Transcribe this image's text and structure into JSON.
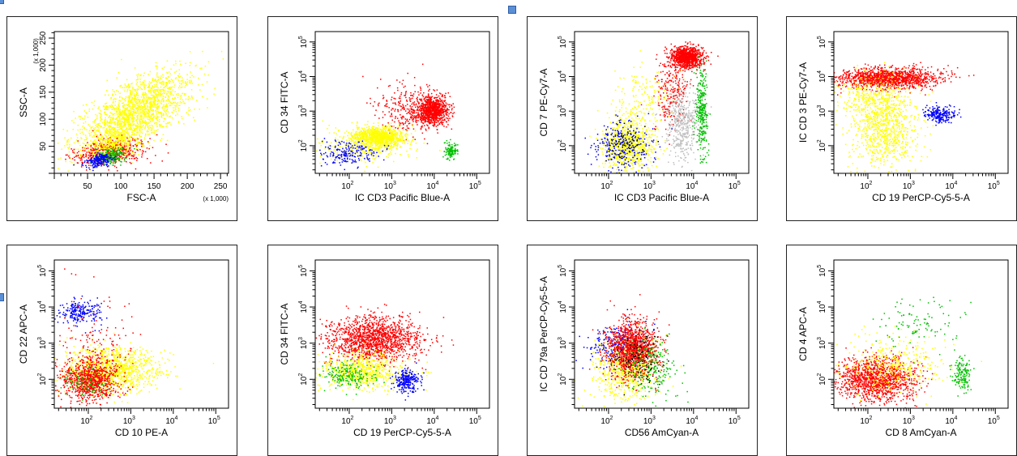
{
  "chart_data": [
    {
      "type": "scatter",
      "xscale": "linear",
      "yscale": "linear",
      "xlabel": "FSC-A",
      "ylabel": "SSC-A",
      "xunit": "(x 1,000)",
      "yunit": "(x 1,000)",
      "xlim": [
        0,
        262
      ],
      "ylim": [
        0,
        262
      ],
      "xticks": [
        50,
        100,
        150,
        200,
        250
      ],
      "yticks": [
        50,
        100,
        150,
        200,
        250
      ],
      "populations": [
        {
          "color": "#ffff00",
          "center": [
            120,
            110
          ],
          "spread": [
            42,
            30
          ],
          "n": 1800,
          "tilt": 0.85
        },
        {
          "color": "#ff0000",
          "center": [
            85,
            40
          ],
          "spread": [
            28,
            12
          ],
          "n": 500,
          "tilt": 0.3
        },
        {
          "color": "#ffff00",
          "center": [
            90,
            55
          ],
          "spread": [
            20,
            12
          ],
          "n": 300,
          "tilt": 0.4
        },
        {
          "color": "#00c000",
          "center": [
            85,
            32
          ],
          "spread": [
            12,
            7
          ],
          "n": 220,
          "tilt": 0.3
        },
        {
          "color": "#0000ff",
          "center": [
            68,
            24
          ],
          "spread": [
            10,
            6
          ],
          "n": 200,
          "tilt": 0.3
        }
      ]
    },
    {
      "type": "scatter",
      "xscale": "log",
      "yscale": "log",
      "xlabel": "IC CD3 Pacific Blue-A",
      "ylabel": "CD 34 FITC-A",
      "xlim": [
        1.2,
        5.3
      ],
      "ylim": [
        1.2,
        5.3
      ],
      "xticks": [
        2,
        3,
        4,
        5
      ],
      "yticks": [
        2,
        3,
        4,
        5
      ],
      "populations": [
        {
          "color": "#ff0000",
          "center": [
            3.95,
            3.0
          ],
          "spread": [
            0.18,
            0.2
          ],
          "n": 900
        },
        {
          "color": "#ff0000",
          "center": [
            3.4,
            3.1
          ],
          "spread": [
            0.4,
            0.35
          ],
          "n": 300
        },
        {
          "color": "#ffff00",
          "center": [
            2.7,
            2.25
          ],
          "spread": [
            0.3,
            0.14
          ],
          "n": 900
        },
        {
          "color": "#ffff00",
          "center": [
            2.3,
            2.0
          ],
          "spread": [
            0.55,
            0.25
          ],
          "n": 300
        },
        {
          "color": "#0000ff",
          "center": [
            2.0,
            1.75
          ],
          "spread": [
            0.35,
            0.2
          ],
          "n": 200
        },
        {
          "color": "#00c000",
          "center": [
            4.4,
            1.85
          ],
          "spread": [
            0.07,
            0.12
          ],
          "n": 120
        }
      ]
    },
    {
      "type": "scatter",
      "xscale": "log",
      "yscale": "log",
      "xlabel": "IC CD3 Pacific Blue-A",
      "ylabel": "CD 7 PE-Cy7-A",
      "xlim": [
        1.2,
        5.3
      ],
      "ylim": [
        1.2,
        5.3
      ],
      "xticks": [
        2,
        3,
        4,
        5
      ],
      "yticks": [
        2,
        3,
        4,
        5
      ],
      "populations": [
        {
          "color": "#ff0000",
          "center": [
            3.85,
            4.55
          ],
          "spread": [
            0.18,
            0.15
          ],
          "n": 1000
        },
        {
          "color": "#ff0000",
          "center": [
            3.5,
            3.6
          ],
          "spread": [
            0.2,
            0.6
          ],
          "n": 250
        },
        {
          "color": "#c0c0c0",
          "center": [
            3.75,
            2.6
          ],
          "spread": [
            0.2,
            0.5
          ],
          "n": 450
        },
        {
          "color": "#00c000",
          "center": [
            4.2,
            3.0
          ],
          "spread": [
            0.07,
            0.65
          ],
          "n": 300
        },
        {
          "color": "#ffff00",
          "center": [
            2.45,
            2.0
          ],
          "spread": [
            0.3,
            0.4
          ],
          "n": 800
        },
        {
          "color": "#ffff00",
          "center": [
            2.8,
            3.4
          ],
          "spread": [
            0.35,
            0.45
          ],
          "n": 150
        },
        {
          "color": "#0000ff",
          "center": [
            2.3,
            2.0
          ],
          "spread": [
            0.35,
            0.4
          ],
          "n": 250
        },
        {
          "color": "#000000",
          "center": [
            2.45,
            2.0
          ],
          "spread": [
            0.25,
            0.3
          ],
          "n": 70
        }
      ]
    },
    {
      "type": "scatter",
      "xscale": "log",
      "yscale": "log",
      "xlabel": "CD 19 PerCP-Cy5-5-A",
      "ylabel": "IC CD 3 PE-Cy7-A",
      "xlim": [
        1.2,
        5.3
      ],
      "ylim": [
        1.2,
        5.3
      ],
      "xticks": [
        2,
        3,
        4,
        5
      ],
      "yticks": [
        2,
        3,
        4,
        5
      ],
      "populations": [
        {
          "color": "#ff0000",
          "center": [
            2.5,
            3.95
          ],
          "spread": [
            0.6,
            0.15
          ],
          "n": 1300
        },
        {
          "color": "#ffff00",
          "center": [
            2.1,
            3.4
          ],
          "spread": [
            0.4,
            0.35
          ],
          "n": 300
        },
        {
          "color": "#ffff00",
          "center": [
            2.4,
            2.5
          ],
          "spread": [
            0.4,
            0.6
          ],
          "n": 800
        },
        {
          "color": "#0000ff",
          "center": [
            3.7,
            2.9
          ],
          "spread": [
            0.18,
            0.12
          ],
          "n": 220
        }
      ]
    },
    {
      "type": "scatter",
      "xscale": "log",
      "yscale": "log",
      "xlabel": "CD 10 PE-A",
      "ylabel": "CD 22 APC-A",
      "xlim": [
        1.2,
        5.3
      ],
      "ylim": [
        1.2,
        5.3
      ],
      "xticks": [
        2,
        3,
        4,
        5
      ],
      "yticks": [
        2,
        3,
        4,
        5
      ],
      "populations": [
        {
          "color": "#ffff00",
          "center": [
            2.5,
            2.25
          ],
          "spread": [
            0.6,
            0.3
          ],
          "n": 1200
        },
        {
          "color": "#ff0000",
          "center": [
            2.0,
            2.0
          ],
          "spread": [
            0.35,
            0.3
          ],
          "n": 900
        },
        {
          "color": "#00c000",
          "center": [
            1.9,
            1.9
          ],
          "spread": [
            0.25,
            0.2
          ],
          "n": 80
        },
        {
          "color": "#0000ff",
          "center": [
            1.8,
            3.85
          ],
          "spread": [
            0.25,
            0.15
          ],
          "n": 220
        },
        {
          "color": "#ff0000",
          "center": [
            2.2,
            3.2
          ],
          "spread": [
            0.5,
            0.6
          ],
          "n": 120
        }
      ]
    },
    {
      "type": "scatter",
      "xscale": "log",
      "yscale": "log",
      "xlabel": "CD 19 PerCP-Cy5-5-A",
      "ylabel": "CD 34 FITC-A",
      "xlim": [
        1.2,
        5.3
      ],
      "ylim": [
        1.2,
        5.3
      ],
      "xticks": [
        2,
        3,
        4,
        5
      ],
      "yticks": [
        2,
        3,
        4,
        5
      ],
      "populations": [
        {
          "color": "#ff0000",
          "center": [
            2.6,
            3.1
          ],
          "spread": [
            0.55,
            0.3
          ],
          "n": 1400
        },
        {
          "color": "#ffff00",
          "center": [
            2.3,
            2.25
          ],
          "spread": [
            0.5,
            0.25
          ],
          "n": 700
        },
        {
          "color": "#00c000",
          "center": [
            2.0,
            2.1
          ],
          "spread": [
            0.3,
            0.2
          ],
          "n": 200
        },
        {
          "color": "#0000ff",
          "center": [
            3.35,
            1.95
          ],
          "spread": [
            0.15,
            0.15
          ],
          "n": 260
        }
      ]
    },
    {
      "type": "scatter",
      "xscale": "log",
      "yscale": "log",
      "xlabel": "CD56 AmCyan-A",
      "ylabel": "IC CD 79a PerCP-Cy5-5-A",
      "xlim": [
        1.2,
        5.3
      ],
      "ylim": [
        1.2,
        5.3
      ],
      "xticks": [
        2,
        3,
        4,
        5
      ],
      "yticks": [
        2,
        3,
        4,
        5
      ],
      "populations": [
        {
          "color": "#ffff00",
          "center": [
            2.4,
            2.3
          ],
          "spread": [
            0.4,
            0.45
          ],
          "n": 700
        },
        {
          "color": "#0000ff",
          "center": [
            2.2,
            3.0
          ],
          "spread": [
            0.35,
            0.3
          ],
          "n": 250
        },
        {
          "color": "#ff0000",
          "center": [
            2.55,
            2.85
          ],
          "spread": [
            0.3,
            0.4
          ],
          "n": 1200
        },
        {
          "color": "#00c000",
          "center": [
            3.0,
            2.3
          ],
          "spread": [
            0.3,
            0.4
          ],
          "n": 220
        },
        {
          "color": "#000000",
          "center": [
            2.7,
            2.6
          ],
          "spread": [
            0.25,
            0.35
          ],
          "n": 100
        }
      ]
    },
    {
      "type": "scatter",
      "xscale": "log",
      "yscale": "log",
      "xlabel": "CD 8 AmCyan-A",
      "ylabel": "CD 4 APC-A",
      "xlim": [
        1.2,
        5.3
      ],
      "ylim": [
        1.2,
        5.3
      ],
      "xticks": [
        2,
        3,
        4,
        5
      ],
      "yticks": [
        2,
        3,
        4,
        5
      ],
      "populations": [
        {
          "color": "#ff0000",
          "center": [
            2.2,
            2.0
          ],
          "spread": [
            0.45,
            0.3
          ],
          "n": 1300
        },
        {
          "color": "#ffff00",
          "center": [
            2.6,
            2.4
          ],
          "spread": [
            0.6,
            0.4
          ],
          "n": 400
        },
        {
          "color": "#00c000",
          "center": [
            4.2,
            2.1
          ],
          "spread": [
            0.1,
            0.25
          ],
          "n": 150
        },
        {
          "color": "#00c000",
          "center": [
            3.2,
            3.6
          ],
          "spread": [
            0.5,
            0.35
          ],
          "n": 100
        }
      ]
    }
  ]
}
